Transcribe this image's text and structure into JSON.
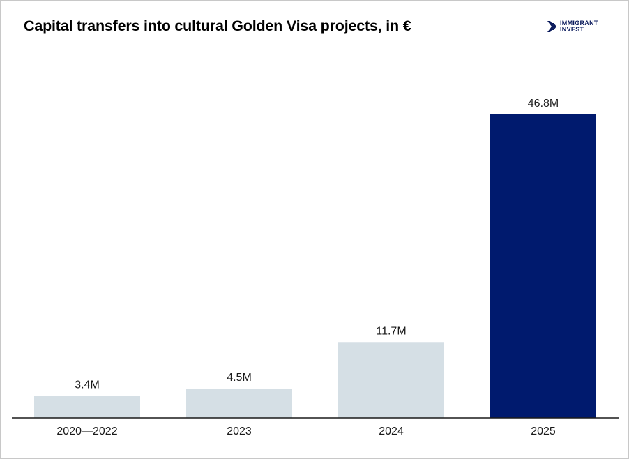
{
  "header": {
    "title": "Capital transfers into cultural Golden Visa projects, in €",
    "logo_line1": "IMMIGRANT",
    "logo_line2": "INVEST"
  },
  "colors": {
    "bar_default": "#d5dfe5",
    "bar_highlight": "#001a6e",
    "axis": "#1a1a1a"
  },
  "chart_data": {
    "type": "bar",
    "title": "Capital transfers into cultural Golden Visa projects, in €",
    "xlabel": "",
    "ylabel": "",
    "categories": [
      "2020—2022",
      "2023",
      "2024",
      "2025"
    ],
    "values": [
      3.4,
      4.5,
      11.7,
      46.8
    ],
    "value_labels": [
      "3.4M",
      "4.5M",
      "11.7M",
      "46.8M"
    ],
    "unit": "M €",
    "highlight_index": 3,
    "grid": false,
    "legend": "none"
  }
}
